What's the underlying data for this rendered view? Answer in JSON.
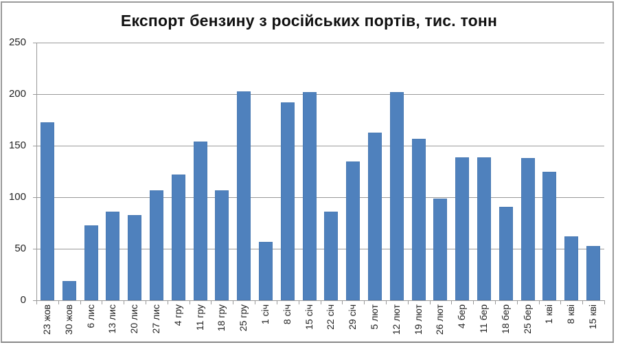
{
  "chart_data": {
    "type": "bar",
    "title": "Експорт бензину з російських портів, тис. тонн",
    "xlabel": "",
    "ylabel": "",
    "ylim": [
      0,
      250
    ],
    "yticks": [
      0,
      50,
      100,
      150,
      200,
      250
    ],
    "grid": true,
    "legend": null,
    "bar_color": "#4f81bd",
    "categories": [
      "23 жов",
      "30 жов",
      "6 лис",
      "13 лис",
      "20 лис",
      "27 лис",
      "4 гру",
      "11 гру",
      "18 гру",
      "25 гру",
      "1 січ",
      "8 січ",
      "15 січ",
      "22 січ",
      "29 січ",
      "5 лют",
      "12 лют",
      "19 лют",
      "26 лют",
      "4 бер",
      "11 бер",
      "18 бер",
      "25 бер",
      "1 кві",
      "8 кві",
      "15 кві"
    ],
    "values": [
      173,
      19,
      73,
      86,
      83,
      107,
      122,
      154,
      107,
      203,
      57,
      192,
      202,
      86,
      135,
      163,
      202,
      157,
      99,
      139,
      139,
      91,
      138,
      125,
      62,
      53
    ]
  }
}
